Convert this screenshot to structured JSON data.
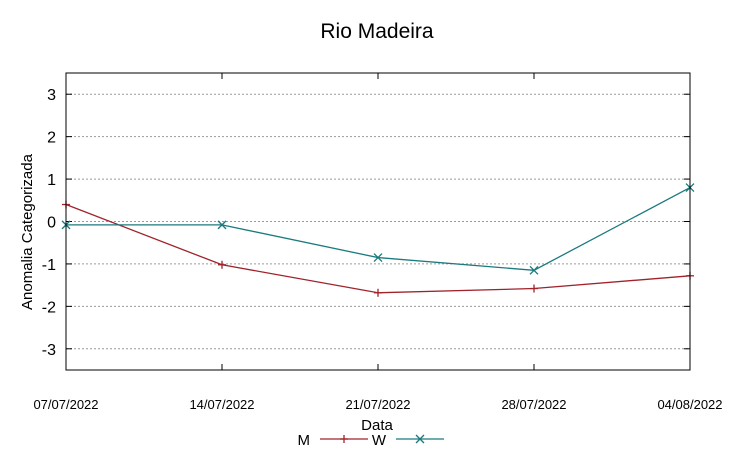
{
  "chart_data": {
    "type": "line",
    "title": "Rio Madeira",
    "xlabel": "Data",
    "ylabel": "Anomalia Categorizada",
    "categories": [
      "07/07/2022",
      "14/07/2022",
      "21/07/2022",
      "28/07/2022",
      "04/08/2022"
    ],
    "ylim": [
      -3.5,
      3.5
    ],
    "yticks": [
      "3",
      "2",
      "1",
      "0",
      "-1",
      "-2",
      "-3"
    ],
    "ytick_values": [
      3,
      2,
      1,
      0,
      -1,
      -2,
      -3
    ],
    "grid": true,
    "legend_position": "bottom",
    "series": [
      {
        "name": "M",
        "color": "#a0222a",
        "marker": "plus",
        "values": [
          0.4,
          -1.02,
          -1.68,
          -1.58,
          -1.28
        ]
      },
      {
        "name": "W",
        "color": "#1b7a7e",
        "marker": "cross",
        "values": [
          -0.08,
          -0.08,
          -0.85,
          -1.15,
          0.8
        ]
      }
    ]
  }
}
